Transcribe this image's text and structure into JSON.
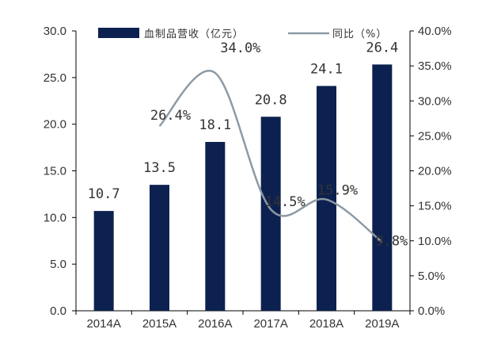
{
  "chart_data": {
    "type": "bar",
    "categories": [
      "2014A",
      "2015A",
      "2016A",
      "2017A",
      "2018A",
      "2019A"
    ],
    "series": [
      {
        "name": "血制品营收（亿元）",
        "type": "bar",
        "axis": "left",
        "color": "#0d2150",
        "values": [
          10.7,
          13.5,
          18.1,
          20.8,
          24.1,
          26.4
        ],
        "value_labels": [
          "10.7",
          "13.5",
          "18.1",
          "20.8",
          "24.1",
          "26.4"
        ]
      },
      {
        "name": "同比（%）",
        "type": "line",
        "axis": "right",
        "color": "#8d9aa4",
        "values": [
          null,
          26.4,
          34.0,
          14.5,
          15.9,
          9.8
        ],
        "value_labels": [
          null,
          "26.4%",
          "34.0%",
          "14.5%",
          "15.9%",
          "9.8%"
        ]
      }
    ],
    "y_left": {
      "lim": [
        0,
        30
      ],
      "tick_labels": [
        "0.0",
        "5.0",
        "10.0",
        "15.0",
        "20.0",
        "25.0",
        "30.0"
      ]
    },
    "y_right": {
      "lim": [
        0,
        40
      ],
      "tick_labels": [
        "0.0%",
        "5.0%",
        "10.0%",
        "15.0%",
        "20.0%",
        "25.0%",
        "30.0%",
        "35.0%",
        "40.0%"
      ]
    },
    "legend_position": "top",
    "grid": false
  }
}
